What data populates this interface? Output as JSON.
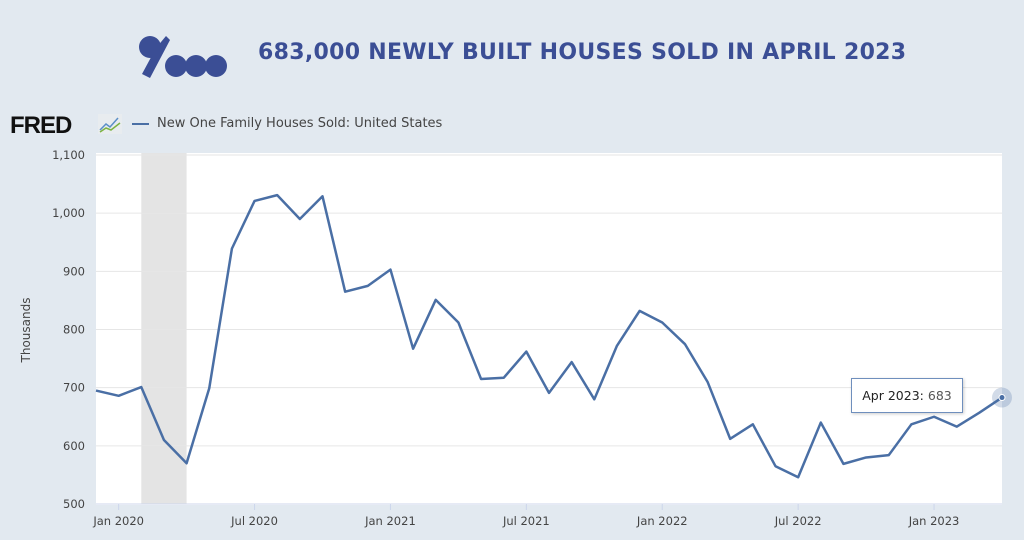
{
  "header": {
    "title": "683,000 NEWLY BUILT HOUSES SOLD IN APRIL 2023",
    "brand_color": "#3b4e95"
  },
  "fred": {
    "logo_text": "FRED",
    "legend_label": "New One Family Houses Sold: United States"
  },
  "tooltip": {
    "label": "Apr 2023:",
    "value": "683"
  },
  "chart_data": {
    "type": "line",
    "title": "",
    "xlabel": "",
    "ylabel": "Thousands",
    "ylim": [
      500,
      1100
    ],
    "yticks": [
      "500",
      "600",
      "700",
      "800",
      "900",
      "1,000",
      "1,100"
    ],
    "xticks": [
      {
        "date": "2020-01",
        "label": "Jan 2020"
      },
      {
        "date": "2020-07",
        "label": "Jul 2020"
      },
      {
        "date": "2021-01",
        "label": "Jan 2021"
      },
      {
        "date": "2021-07",
        "label": "Jul 2021"
      },
      {
        "date": "2022-01",
        "label": "Jan 2022"
      },
      {
        "date": "2022-07",
        "label": "Jul 2022"
      },
      {
        "date": "2023-01",
        "label": "Jan 2023"
      }
    ],
    "xlim": [
      "2019-12",
      "2023-04"
    ],
    "grid": true,
    "legend": "top-left",
    "recession_shading": [
      "2020-02",
      "2020-04"
    ],
    "series": [
      {
        "name": "New One Family Houses Sold: United States",
        "color": "#4a6fa5",
        "x": [
          "2019-12",
          "2020-01",
          "2020-02",
          "2020-03",
          "2020-04",
          "2020-05",
          "2020-06",
          "2020-07",
          "2020-08",
          "2020-09",
          "2020-10",
          "2020-11",
          "2020-12",
          "2021-01",
          "2021-02",
          "2021-03",
          "2021-04",
          "2021-05",
          "2021-06",
          "2021-07",
          "2021-08",
          "2021-09",
          "2021-10",
          "2021-11",
          "2021-12",
          "2022-01",
          "2022-02",
          "2022-03",
          "2022-04",
          "2022-05",
          "2022-06",
          "2022-07",
          "2022-08",
          "2022-09",
          "2022-10",
          "2022-11",
          "2022-12",
          "2023-01",
          "2023-02",
          "2023-03",
          "2023-04"
        ],
        "values": [
          695,
          686,
          701,
          610,
          570,
          699,
          939,
          1021,
          1031,
          990,
          1029,
          865,
          875,
          903,
          767,
          851,
          812,
          715,
          717,
          762,
          691,
          744,
          680,
          772,
          832,
          812,
          775,
          710,
          612,
          637,
          565,
          546,
          640,
          569,
          580,
          584,
          637,
          650,
          633,
          657,
          683
        ]
      }
    ]
  }
}
